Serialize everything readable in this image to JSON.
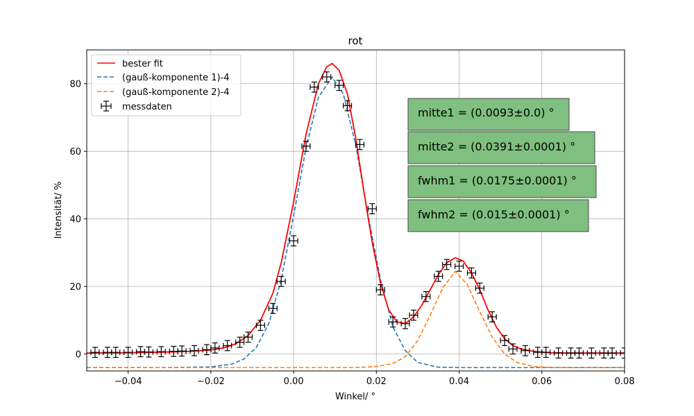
{
  "chart_data": {
    "type": "scatter",
    "title": "rot",
    "xlabel": "Winkel/ °",
    "ylabel": "Intensität/ %",
    "xlim": [
      -0.05,
      0.08
    ],
    "ylim": [
      -5,
      90
    ],
    "grid": true,
    "xticks": [
      -0.04,
      -0.02,
      0.0,
      0.02,
      0.04,
      0.06,
      0.08
    ],
    "xtick_labels": [
      "−0.04",
      "−0.02",
      "0.00",
      "0.02",
      "0.04",
      "0.06",
      "0.08"
    ],
    "yticks": [
      0,
      20,
      40,
      60,
      80
    ],
    "ytick_labels": [
      "0",
      "20",
      "40",
      "60",
      "80"
    ],
    "legend_position": "top-left",
    "series": [
      {
        "name": "bester fit",
        "kind": "line",
        "style": "solid",
        "color": "#ff0000",
        "x": [
          -0.05,
          -0.04,
          -0.03,
          -0.025,
          -0.02,
          -0.017,
          -0.014,
          -0.011,
          -0.008,
          -0.005,
          -0.003,
          0.0,
          0.003,
          0.006,
          0.008,
          0.0093,
          0.011,
          0.013,
          0.015,
          0.017,
          0.019,
          0.021,
          0.023,
          0.025,
          0.027,
          0.029,
          0.031,
          0.033,
          0.035,
          0.037,
          0.0391,
          0.041,
          0.043,
          0.045,
          0.047,
          0.049,
          0.051,
          0.053,
          0.055,
          0.058,
          0.062,
          0.068,
          0.074,
          0.08
        ],
        "y": [
          0.3,
          0.4,
          0.6,
          0.8,
          1.2,
          1.8,
          3.0,
          5.5,
          10.0,
          18.0,
          27.0,
          45.0,
          65.0,
          80.0,
          85.0,
          86.0,
          84.0,
          77.0,
          64.0,
          48.0,
          33.0,
          21.0,
          13.0,
          9.5,
          9.0,
          11.0,
          14.5,
          19.0,
          23.5,
          27.0,
          28.5,
          27.5,
          24.0,
          19.0,
          13.0,
          8.0,
          4.5,
          2.5,
          1.5,
          0.8,
          0.4,
          0.3,
          0.3,
          0.3
        ]
      },
      {
        "name": "(gauß-komponente 1)-4",
        "kind": "line",
        "style": "dashed",
        "color": "#1f77b4",
        "x": [
          -0.05,
          -0.03,
          -0.02,
          -0.015,
          -0.012,
          -0.009,
          -0.006,
          -0.003,
          0.0,
          0.003,
          0.006,
          0.0093,
          0.012,
          0.015,
          0.018,
          0.021,
          0.024,
          0.027,
          0.03,
          0.035,
          0.04,
          0.08
        ],
        "y": [
          -4.0,
          -4.0,
          -3.8,
          -3.0,
          -1.5,
          2.0,
          9.0,
          22.0,
          41.0,
          61.0,
          76.0,
          82.0,
          77.0,
          62.0,
          41.0,
          22.0,
          8.0,
          1.0,
          -2.5,
          -3.9,
          -4.0,
          -4.0
        ]
      },
      {
        "name": "(gauß-komponente 2)-4",
        "kind": "line",
        "style": "dashed",
        "color": "#ff7f0e",
        "x": [
          -0.05,
          0.0,
          0.015,
          0.02,
          0.024,
          0.027,
          0.03,
          0.033,
          0.036,
          0.0391,
          0.042,
          0.045,
          0.048,
          0.051,
          0.054,
          0.058,
          0.063,
          0.08
        ],
        "y": [
          -4.0,
          -4.0,
          -4.0,
          -3.7,
          -2.8,
          -0.8,
          4.0,
          11.5,
          19.5,
          24.5,
          20.5,
          12.5,
          5.0,
          0.0,
          -2.5,
          -3.7,
          -4.0,
          -4.0
        ]
      },
      {
        "name": "messdaten",
        "kind": "errorbar",
        "color": "#000000",
        "xerr": 0.001,
        "yerr": 1.5,
        "x": [
          -0.048,
          -0.045,
          -0.043,
          -0.04,
          -0.037,
          -0.035,
          -0.032,
          -0.029,
          -0.027,
          -0.024,
          -0.021,
          -0.019,
          -0.016,
          -0.013,
          -0.011,
          -0.008,
          -0.005,
          -0.003,
          0.0,
          0.003,
          0.005,
          0.008,
          0.011,
          0.013,
          0.016,
          0.019,
          0.021,
          0.024,
          0.027,
          0.029,
          0.032,
          0.035,
          0.037,
          0.04,
          0.043,
          0.045,
          0.048,
          0.051,
          0.053,
          0.056,
          0.059,
          0.061,
          0.064,
          0.067,
          0.069,
          0.072,
          0.075,
          0.077,
          0.08
        ],
        "y": [
          0.5,
          0.5,
          0.5,
          0.5,
          0.7,
          0.6,
          0.7,
          0.8,
          0.9,
          1.0,
          1.3,
          1.8,
          2.5,
          3.5,
          5.0,
          8.5,
          13.5,
          21.5,
          33.5,
          61.5,
          79.0,
          82.0,
          79.5,
          73.5,
          62.0,
          43.0,
          19.0,
          9.5,
          9.0,
          11.5,
          17.0,
          23.0,
          26.5,
          26.0,
          24.0,
          19.5,
          11.0,
          4.0,
          1.5,
          1.0,
          0.5,
          0.5,
          0.3,
          0.3,
          0.3,
          0.3,
          0.3,
          0.3,
          0.3
        ]
      }
    ],
    "annotations": [
      {
        "name": "mitte1",
        "text": "mitte1 = (0.0093±0.0) °"
      },
      {
        "name": "mitte2",
        "text": "mitte2 = (0.0391±0.0001)  °"
      },
      {
        "name": "fwhm1",
        "text": "fwhm1 = (0.0175±0.0001)  °"
      },
      {
        "name": "fwhm2",
        "text": "fwhm2 = (0.015±0.0001)  °"
      }
    ],
    "annotation_box_color": "#7fbf7f"
  }
}
